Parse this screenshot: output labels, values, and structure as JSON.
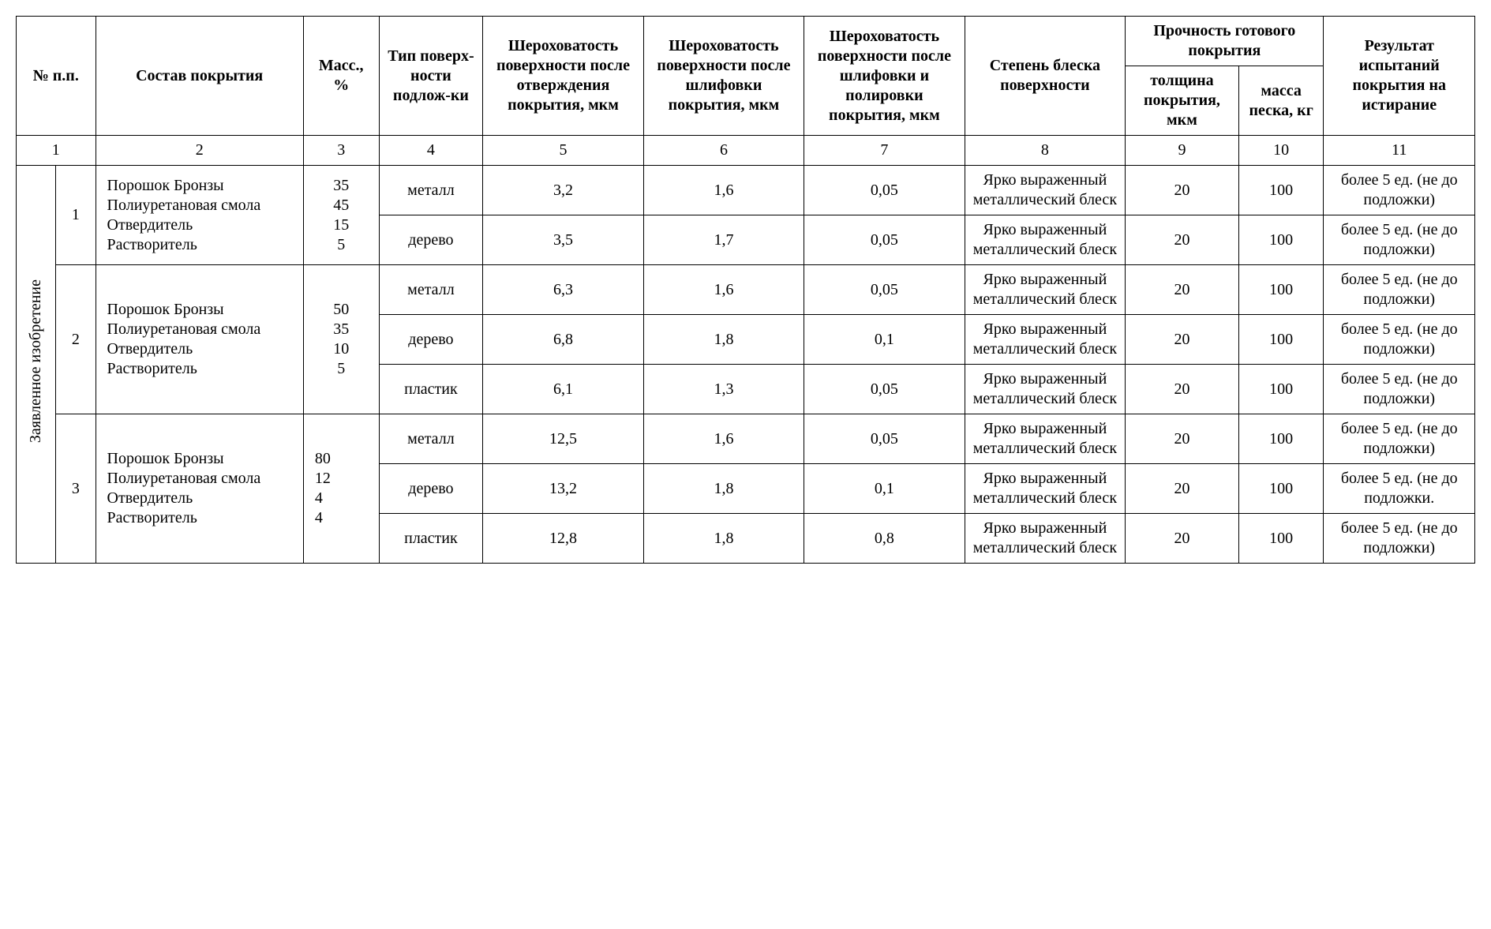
{
  "headers": {
    "npp": "№ п.п.",
    "composition": "Состав покрытия",
    "mass": "Масс., %",
    "surface_type": "Тип поверх-ности подлож-ки",
    "rough_cured": "Шероховатость поверхности после отверждения покрытия, мкм",
    "rough_ground": "Шероховатость поверхности после шлифовки покрытия, мкм",
    "rough_polished": "Шероховатость поверхности после шлифовки и полировки покрытия, мкм",
    "gloss": "Степень блеска поверхности",
    "strength_group": "Прочность готового покрытия",
    "thickness": "толщина покрытия, мкм",
    "sand_mass": "масса песка, кг",
    "abrasion": "Результат испытаний покрытия на истирание"
  },
  "col_numbers": {
    "c1": "1",
    "c2": "2",
    "c3": "3",
    "c4": "4",
    "c5": "5",
    "c6": "6",
    "c7": "7",
    "c8": "8",
    "c9": "9",
    "c10": "10",
    "c11": "11"
  },
  "side_label": "Заявленное изобретение",
  "compositions": {
    "comp1": "Порошок Бронзы\nПолиуретановая смола\nОтвердитель\nРастворитель",
    "comp2": "Порошок Бронзы\nПолиуретановая смола\nОтвердитель\nРастворитель",
    "comp3": "Порошок Бронзы\nПолиуретановая смола\nОтвердитель\nРастворитель"
  },
  "mass": {
    "m1": "35\n45\n15\n5",
    "m2": "50\n35\n10\n5",
    "m3": "80\n12\n4\n4"
  },
  "sub_nums": {
    "n1": "1",
    "n2": "2",
    "n3": "3"
  },
  "rows": {
    "r1": {
      "type": "металл",
      "a": "3,2",
      "b": "1,6",
      "c": "0,05",
      "gloss": "Ярко выраженный металлический блеск",
      "th": "20",
      "sand": "100",
      "res": "более 5 ед. (не до подложки)"
    },
    "r2": {
      "type": "дерево",
      "a": "3,5",
      "b": "1,7",
      "c": "0,05",
      "gloss": "Ярко выраженный металлический блеск",
      "th": "20",
      "sand": "100",
      "res": "более 5 ед. (не до подложки)"
    },
    "r3": {
      "type": "металл",
      "a": "6,3",
      "b": "1,6",
      "c": "0,05",
      "gloss": "Ярко выраженный металлический блеск",
      "th": "20",
      "sand": "100",
      "res": "более 5 ед. (не до подложки)"
    },
    "r4": {
      "type": "дерево",
      "a": "6,8",
      "b": "1,8",
      "c": "0,1",
      "gloss": "Ярко выраженный металлический блеск",
      "th": "20",
      "sand": "100",
      "res": "более 5 ед. (не до подложки)"
    },
    "r5": {
      "type": "пластик",
      "a": "6,1",
      "b": "1,3",
      "c": "0,05",
      "gloss": "Ярко выраженный металлический блеск",
      "th": "20",
      "sand": "100",
      "res": "более 5 ед. (не до подложки)"
    },
    "r6": {
      "type": "металл",
      "a": "12,5",
      "b": "1,6",
      "c": "0,05",
      "gloss": "Ярко выраженный металлический блеск",
      "th": "20",
      "sand": "100",
      "res": "более 5 ед. (не до подложки)"
    },
    "r7": {
      "type": "дерево",
      "a": "13,2",
      "b": "1,8",
      "c": "0,1",
      "gloss": "Ярко выраженный металлический блеск",
      "th": "20",
      "sand": "100",
      "res": "более 5 ед. (не до подложки."
    },
    "r8": {
      "type": "пластик",
      "a": "12,8",
      "b": "1,8",
      "c": "0,8",
      "gloss": "Ярко выраженный металлический блеск",
      "th": "20",
      "sand": "100",
      "res": "более 5 ед. (не до подложки)"
    }
  }
}
